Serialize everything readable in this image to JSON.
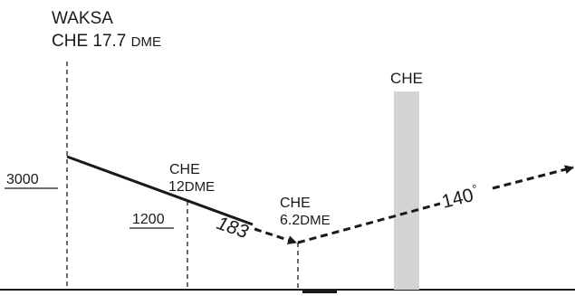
{
  "fix": {
    "name": "WAKSA",
    "dme_prefix": "CHE 17.7 ",
    "dme_suffix": "DME",
    "altitude": "3000"
  },
  "step_down": {
    "station": "CHE",
    "distance": "12",
    "unit": "DME",
    "altitude": "1200"
  },
  "mapt": {
    "station": "CHE",
    "distance": "6.2",
    "unit": "DME"
  },
  "navaid": {
    "label": "CHE"
  },
  "courses": {
    "inbound": "183",
    "outbound": "140",
    "degree": "°"
  }
}
